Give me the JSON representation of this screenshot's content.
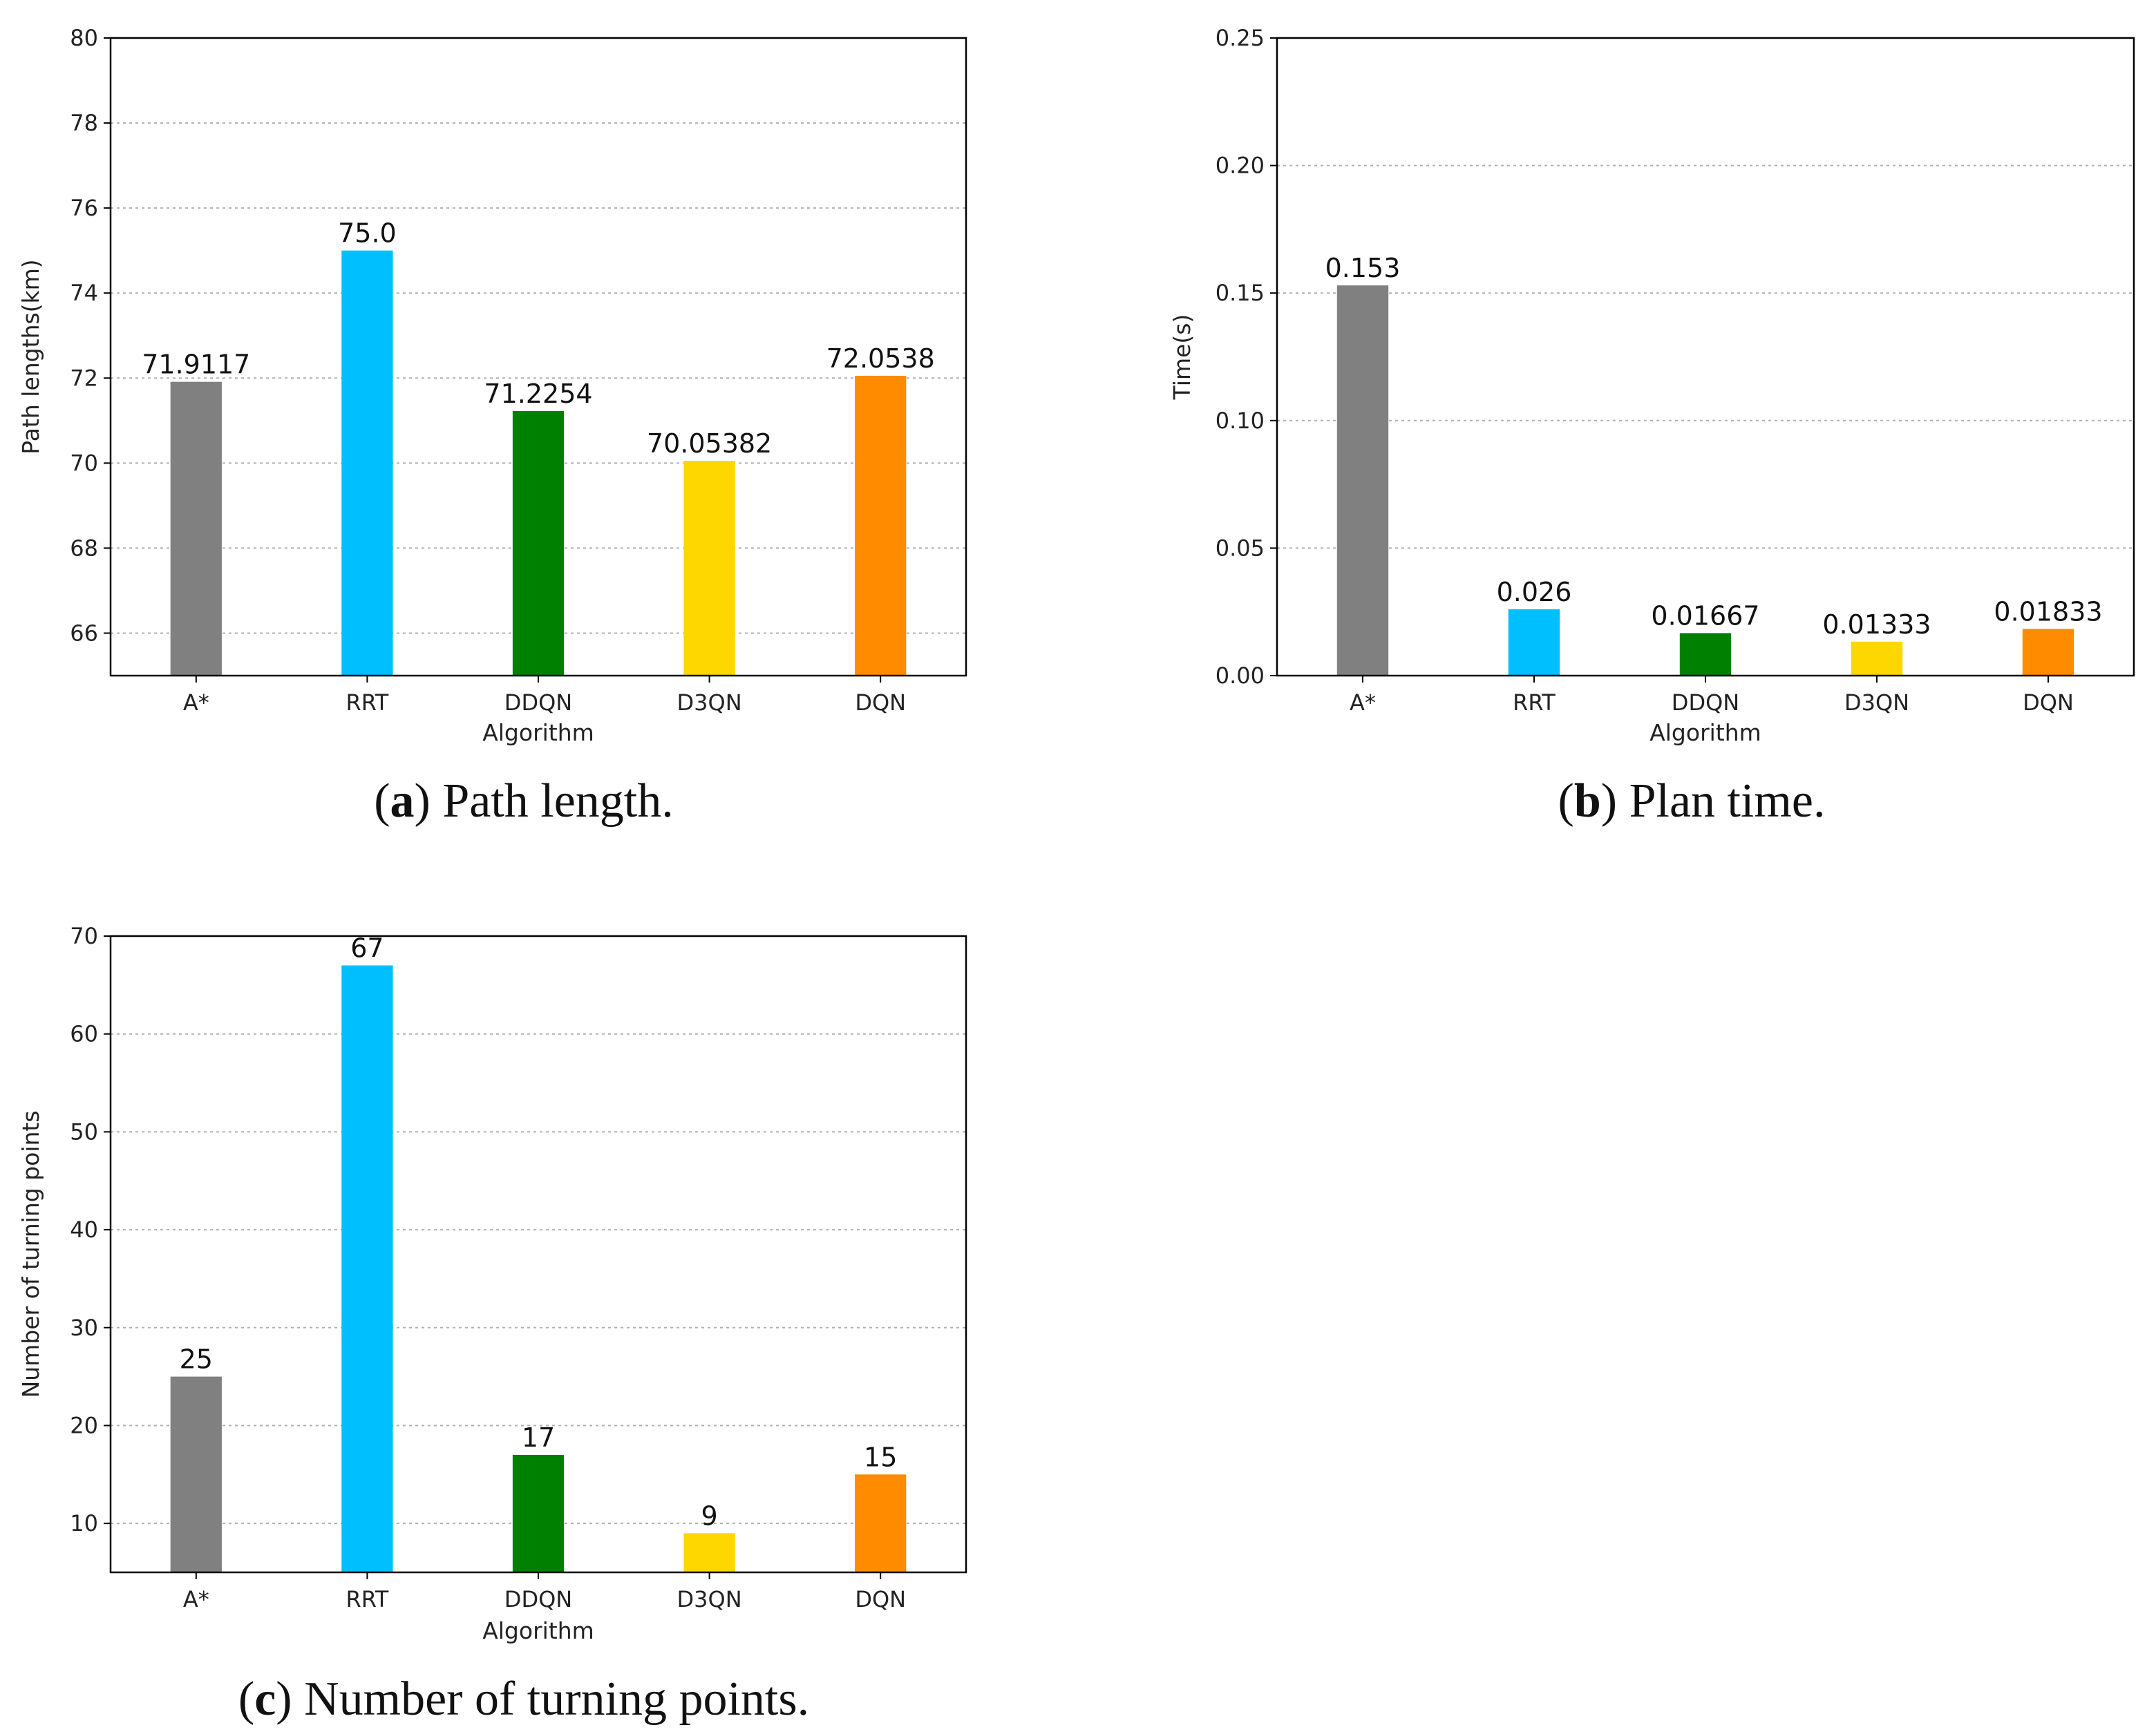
{
  "chart_data": [
    {
      "id": "a",
      "type": "bar",
      "categories": [
        "A*",
        "RRT",
        "DDQN",
        "D3QN",
        "DQN"
      ],
      "values": [
        71.9117,
        75.0,
        71.2254,
        70.05382,
        72.0538
      ],
      "value_labels": [
        "71.9117",
        "75.0",
        "71.2254",
        "70.05382",
        "72.0538"
      ],
      "colors": [
        "#808080",
        "#00bfff",
        "#008000",
        "#ffd700",
        "#ff8c00"
      ],
      "xlabel": "Algorithm",
      "ylabel": "Path lengths(km)",
      "ylim": [
        65,
        80
      ],
      "yticks": [
        66,
        68,
        70,
        72,
        74,
        76,
        78,
        80
      ],
      "ytick_labels": [
        "66",
        "68",
        "70",
        "72",
        "74",
        "76",
        "78",
        "80"
      ],
      "grid": true,
      "caption_letter": "a",
      "caption_open": "(",
      "caption_text": ") Path length."
    },
    {
      "id": "b",
      "type": "bar",
      "categories": [
        "A*",
        "RRT",
        "DDQN",
        "D3QN",
        "DQN"
      ],
      "values": [
        0.153,
        0.026,
        0.01667,
        0.01333,
        0.01833
      ],
      "value_labels": [
        "0.153",
        "0.026",
        "0.01667",
        "0.01333",
        "0.01833"
      ],
      "colors": [
        "#808080",
        "#00bfff",
        "#008000",
        "#ffd700",
        "#ff8c00"
      ],
      "xlabel": "Algorithm",
      "ylabel": "Time(s)",
      "ylim": [
        0,
        0.25
      ],
      "yticks": [
        0.0,
        0.05,
        0.1,
        0.15,
        0.2,
        0.25
      ],
      "ytick_labels": [
        "0.00",
        "0.05",
        "0.10",
        "0.15",
        "0.20",
        "0.25"
      ],
      "grid": true,
      "caption_letter": "b",
      "caption_open": "(",
      "caption_text": ") Plan time."
    },
    {
      "id": "c",
      "type": "bar",
      "categories": [
        "A*",
        "RRT",
        "DDQN",
        "D3QN",
        "DQN"
      ],
      "values": [
        25,
        67,
        17,
        9,
        15
      ],
      "value_labels": [
        "25",
        "67",
        "17",
        "9",
        "15"
      ],
      "colors": [
        "#808080",
        "#00bfff",
        "#008000",
        "#ffd700",
        "#ff8c00"
      ],
      "xlabel": "Algorithm",
      "ylabel": "Number of turning points",
      "ylim": [
        5,
        70
      ],
      "yticks": [
        10,
        20,
        30,
        40,
        50,
        60,
        70
      ],
      "ytick_labels": [
        "10",
        "20",
        "30",
        "40",
        "50",
        "60",
        "70"
      ],
      "grid": true,
      "caption_letter": "c",
      "caption_open": "(",
      "caption_text": ") Number of turning points."
    }
  ]
}
